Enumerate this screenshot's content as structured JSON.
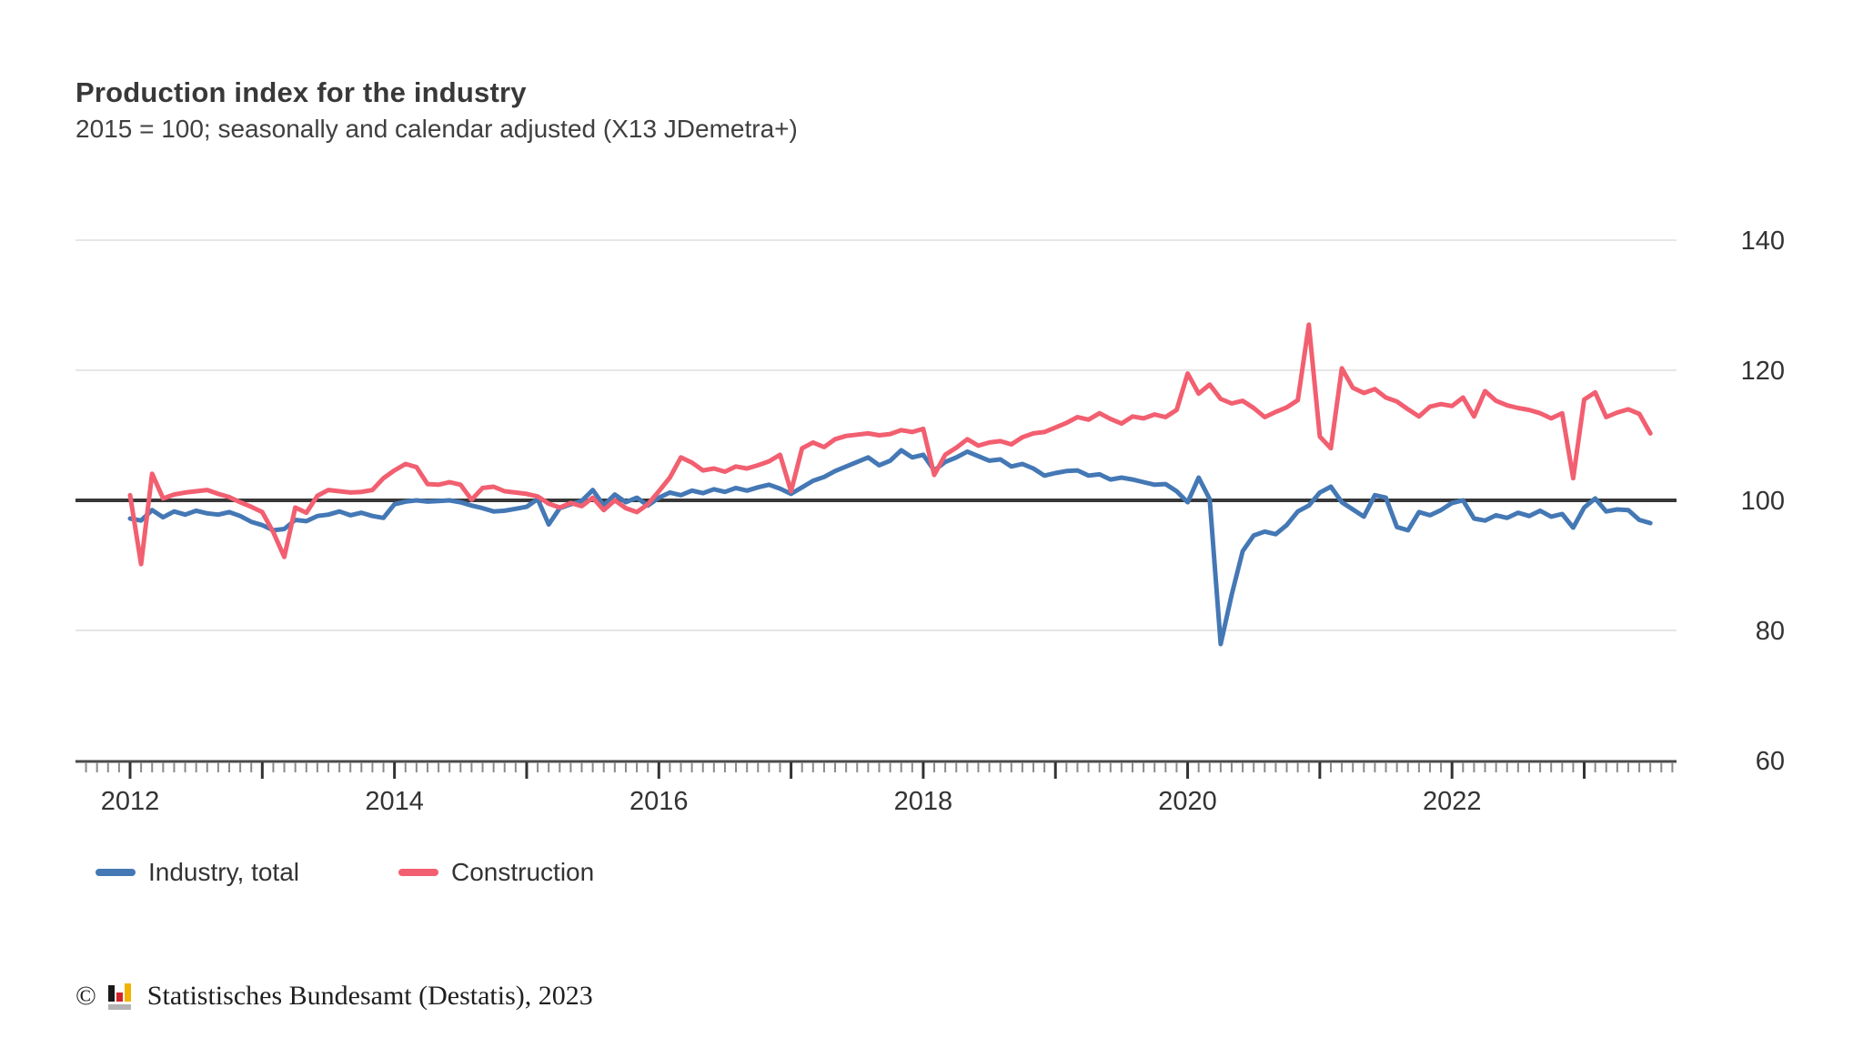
{
  "header": {
    "title": "Production index for the industry",
    "subtitle": "2015 = 100; seasonally and calendar adjusted (X13 JDemetra+)"
  },
  "legend": [
    {
      "label": "Industry, total",
      "color": "#4478b5"
    },
    {
      "label": "Construction",
      "color": "#f25f70"
    }
  ],
  "footer": {
    "copyright": "©",
    "logo": "destatis-bars-icon",
    "text": "Statistisches Bundesamt (Destatis), 2023"
  },
  "chart_data": {
    "type": "line",
    "title": "Production index for the industry",
    "subtitle": "2015 = 100; seasonally and calendar adjusted (X13 JDemetra+)",
    "x_unit": "month",
    "x_start": "2012-01",
    "x_end": "2023-07",
    "x_tick_labels": [
      "2012",
      "2014",
      "2016",
      "2018",
      "2020",
      "2022"
    ],
    "y_ticks": [
      60,
      80,
      100,
      120,
      140
    ],
    "ylim": [
      57,
      147
    ],
    "baseline": 100,
    "grid": "horizontal-light",
    "legend_position": "bottom-left",
    "colors": {
      "industry": "#4478b5",
      "construction": "#f25f70",
      "baseline": "#383838",
      "gridline": "#e6e6e6",
      "axis": "#4a4a4a",
      "tick_minor": "#8a8a8a",
      "tick_major": "#333333",
      "label": "#333333"
    },
    "series": [
      {
        "name": "Industry, total",
        "color": "#4478b5",
        "values": [
          97.2,
          96.9,
          98.5,
          97.4,
          98.3,
          97.8,
          98.4,
          98.0,
          97.8,
          98.2,
          97.6,
          96.7,
          96.2,
          95.4,
          95.6,
          97.0,
          96.8,
          97.6,
          97.8,
          98.3,
          97.7,
          98.1,
          97.6,
          97.3,
          99.4,
          99.8,
          100.0,
          99.8,
          99.9,
          100.0,
          99.7,
          99.2,
          98.8,
          98.3,
          98.4,
          98.7,
          99.0,
          100.2,
          96.3,
          98.8,
          99.4,
          99.9,
          101.6,
          99.2,
          100.9,
          99.7,
          100.4,
          99.2,
          100.4,
          101.2,
          100.8,
          101.5,
          101.1,
          101.7,
          101.3,
          101.9,
          101.5,
          102.0,
          102.4,
          101.8,
          101.0,
          102.0,
          103.0,
          103.6,
          104.5,
          105.2,
          105.9,
          106.6,
          105.4,
          106.1,
          107.7,
          106.6,
          107.0,
          104.6,
          105.9,
          106.6,
          107.5,
          106.8,
          106.1,
          106.3,
          105.2,
          105.6,
          104.9,
          103.8,
          104.2,
          104.5,
          104.6,
          103.8,
          104.0,
          103.2,
          103.5,
          103.2,
          102.8,
          102.4,
          102.5,
          101.4,
          99.7,
          103.5,
          100.2,
          77.9,
          85.5,
          92.2,
          94.6,
          95.2,
          94.8,
          96.2,
          98.3,
          99.2,
          101.2,
          102.1,
          99.7,
          98.6,
          97.5,
          100.8,
          100.4,
          95.9,
          95.4,
          98.2,
          97.7,
          98.5,
          99.6,
          100.0,
          97.2,
          96.9,
          97.7,
          97.3,
          98.1,
          97.6,
          98.4,
          97.5,
          97.9,
          95.8,
          98.9,
          100.3,
          98.3,
          98.6,
          98.5,
          97.0,
          96.5
        ]
      },
      {
        "name": "Construction",
        "color": "#f25f70",
        "values": [
          100.8,
          90.2,
          104.1,
          100.3,
          100.9,
          101.2,
          101.4,
          101.6,
          101.0,
          100.5,
          99.7,
          99.0,
          98.2,
          95.1,
          91.3,
          98.9,
          98.1,
          100.7,
          101.6,
          101.4,
          101.2,
          101.3,
          101.6,
          103.4,
          104.6,
          105.6,
          105.1,
          102.5,
          102.4,
          102.8,
          102.4,
          100.1,
          101.9,
          102.1,
          101.4,
          101.2,
          101.0,
          100.6,
          99.5,
          98.9,
          99.6,
          99.1,
          100.4,
          98.5,
          100.0,
          98.8,
          98.2,
          99.4,
          101.4,
          103.5,
          106.6,
          105.8,
          104.6,
          104.9,
          104.4,
          105.2,
          104.9,
          105.4,
          106.0,
          107.0,
          101.4,
          108.0,
          108.9,
          108.2,
          109.4,
          109.9,
          110.1,
          110.3,
          110.0,
          110.2,
          110.8,
          110.5,
          111.0,
          103.9,
          107.0,
          108.1,
          109.4,
          108.4,
          108.9,
          109.1,
          108.6,
          109.7,
          110.3,
          110.5,
          111.2,
          111.9,
          112.8,
          112.4,
          113.4,
          112.5,
          111.8,
          112.9,
          112.6,
          113.2,
          112.8,
          113.9,
          119.5,
          116.4,
          117.8,
          115.6,
          114.9,
          115.3,
          114.2,
          112.8,
          113.6,
          114.3,
          115.4,
          127.0,
          109.8,
          108.0,
          120.3,
          117.3,
          116.5,
          117.1,
          115.8,
          115.2,
          114.0,
          112.9,
          114.4,
          114.8,
          114.5,
          115.8,
          112.9,
          116.8,
          115.3,
          114.6,
          114.2,
          113.9,
          113.4,
          112.6,
          113.4,
          103.4,
          115.5,
          116.6,
          112.8,
          113.5,
          114.0,
          113.3,
          110.3
        ]
      }
    ]
  }
}
